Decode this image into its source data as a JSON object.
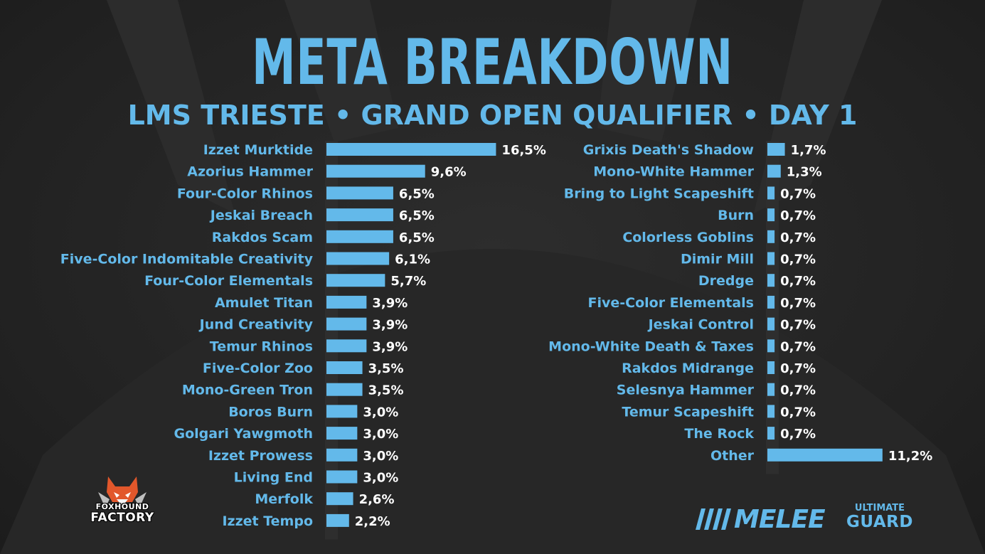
{
  "header": {
    "title": "META BREAKDOWN",
    "subtitle": "LMS TRIESTE • GRAND OPEN QUALIFIER • DAY 1"
  },
  "colors": {
    "accent": "#63b9ea",
    "background": "#242424",
    "value_text": "#ffffff"
  },
  "chart_data": [
    {
      "type": "bar",
      "orientation": "horizontal",
      "unit": "%",
      "categories": [
        "Izzet Murktide",
        "Azorius Hammer",
        "Four-Color Rhinos",
        "Jeskai Breach",
        "Rakdos Scam",
        "Five-Color Indomitable Creativity",
        "Four-Color Elementals",
        "Amulet Titan",
        "Jund Creativity",
        "Temur Rhinos",
        "Five-Color Zoo",
        "Mono-Green Tron",
        "Boros Burn",
        "Golgari Yawgmoth",
        "Izzet Prowess",
        "Living End",
        "Merfolk",
        "Izzet Tempo"
      ],
      "values": [
        16.5,
        9.6,
        6.5,
        6.5,
        6.5,
        6.1,
        5.7,
        3.9,
        3.9,
        3.9,
        3.5,
        3.5,
        3.0,
        3.0,
        3.0,
        3.0,
        2.6,
        2.2
      ],
      "value_labels": [
        "16,5%",
        "9,6%",
        "6,5%",
        "6,5%",
        "6,5%",
        "6,1%",
        "5,7%",
        "3,9%",
        "3,9%",
        "3,9%",
        "3,5%",
        "3,5%",
        "3,0%",
        "3,0%",
        "3,0%",
        "3,0%",
        "2,6%",
        "2,2%"
      ]
    },
    {
      "type": "bar",
      "orientation": "horizontal",
      "unit": "%",
      "categories": [
        "Grixis Death's Shadow",
        "Mono-White Hammer",
        "Bring to Light Scapeshift",
        "Burn",
        "Colorless Goblins",
        "Dimir Mill",
        "Dredge",
        "Five-Color Elementals",
        "Jeskai Control",
        "Mono-White Death & Taxes",
        "Rakdos Midrange",
        "Selesnya Hammer",
        "Temur Scapeshift",
        "The Rock",
        "Other"
      ],
      "values": [
        1.7,
        1.3,
        0.7,
        0.7,
        0.7,
        0.7,
        0.7,
        0.7,
        0.7,
        0.7,
        0.7,
        0.7,
        0.7,
        0.7,
        11.2
      ],
      "value_labels": [
        "1,7%",
        "1,3%",
        "0,7%",
        "0,7%",
        "0,7%",
        "0,7%",
        "0,7%",
        "0,7%",
        "0,7%",
        "0,7%",
        "0,7%",
        "0,7%",
        "0,7%",
        "0,7%",
        "11,2%"
      ]
    }
  ],
  "logos": {
    "foxhound": {
      "line1": "FOXHOUND",
      "line2": "FACTORY"
    },
    "melee": {
      "text": "MELEE"
    },
    "ultimate_guard": {
      "top": "ULTIMATE",
      "bottom": "GUARD"
    }
  }
}
